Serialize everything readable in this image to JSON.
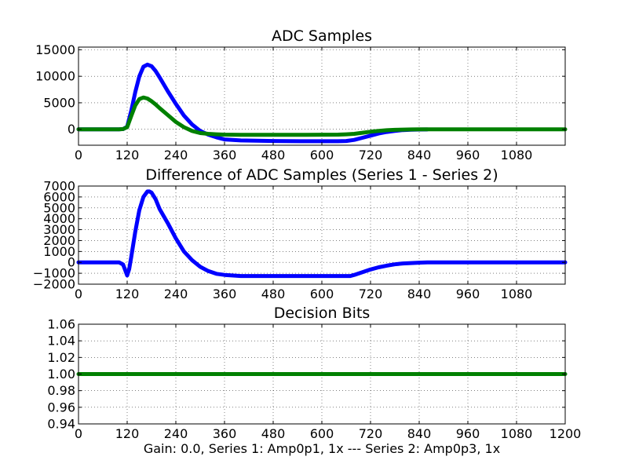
{
  "figure": {
    "xlabel": "Gain: 0.0, Series 1: Amp0p1, 1x --- Series 2: Amp0p3, 1x"
  },
  "chart_data": [
    {
      "type": "line",
      "title": "ADC Samples",
      "xlim": [
        0,
        1200
      ],
      "ylim": [
        -3000,
        15500
      ],
      "xticks": [
        0,
        120,
        240,
        360,
        480,
        600,
        720,
        840,
        960,
        1080
      ],
      "yticks": [
        0,
        5000,
        10000,
        15000
      ],
      "grid": true,
      "series": [
        {
          "name": "Series 1",
          "color": "#0000ff",
          "x": [
            0,
            100,
            110,
            120,
            130,
            140,
            150,
            160,
            170,
            180,
            190,
            200,
            220,
            240,
            260,
            280,
            300,
            320,
            340,
            360,
            400,
            480,
            560,
            640,
            660,
            680,
            700,
            720,
            740,
            760,
            780,
            800,
            820,
            840,
            860
          ],
          "y": [
            0,
            0,
            50,
            500,
            3500,
            7000,
            10000,
            11800,
            12200,
            11900,
            11000,
            9800,
            7200,
            4800,
            2600,
            900,
            -300,
            -1000,
            -1500,
            -1900,
            -2100,
            -2200,
            -2250,
            -2250,
            -2200,
            -2000,
            -1600,
            -1200,
            -800,
            -500,
            -300,
            -150,
            -80,
            -40,
            -20
          ]
        },
        {
          "name": "Series 2",
          "color": "#008000",
          "x": [
            0,
            100,
            110,
            120,
            130,
            140,
            150,
            160,
            170,
            180,
            190,
            200,
            220,
            240,
            260,
            280,
            300,
            320,
            340,
            360,
            400,
            480,
            560,
            640,
            660,
            680,
            700,
            720,
            740,
            760,
            780,
            800,
            820,
            840,
            880,
            960,
            1080,
            1200
          ],
          "y": [
            0,
            0,
            50,
            400,
            2500,
            4500,
            5700,
            6000,
            5800,
            5300,
            4700,
            4000,
            2700,
            1400,
            400,
            -300,
            -700,
            -850,
            -950,
            -1000,
            -1050,
            -1050,
            -1050,
            -1000,
            -950,
            -850,
            -650,
            -450,
            -300,
            -180,
            -100,
            -50,
            -20,
            0,
            0,
            0,
            0,
            0
          ]
        }
      ]
    },
    {
      "type": "line",
      "title": "Difference of ADC Samples (Series 1 - Series 2)",
      "xlim": [
        0,
        1200
      ],
      "ylim": [
        -2000,
        7000
      ],
      "xticks": [
        0,
        120,
        240,
        360,
        480,
        600,
        720,
        840,
        960,
        1080
      ],
      "yticks": [
        -2000,
        -1000,
        0,
        1000,
        2000,
        3000,
        4000,
        5000,
        6000,
        7000
      ],
      "grid": true,
      "series": [
        {
          "name": "Series 1 - Series 2",
          "color": "#0000ff",
          "x": [
            0,
            100,
            110,
            115,
            120,
            125,
            130,
            140,
            150,
            160,
            170,
            175,
            180,
            190,
            200,
            220,
            240,
            260,
            280,
            300,
            320,
            340,
            360,
            400,
            480,
            560,
            640,
            670,
            680,
            700,
            720,
            740,
            760,
            780,
            800,
            820,
            840,
            860,
            960,
            1080,
            1200
          ],
          "y": [
            0,
            0,
            -200,
            -700,
            -1200,
            -600,
            500,
            2800,
            4800,
            6000,
            6500,
            6500,
            6400,
            5800,
            4900,
            3600,
            2200,
            1000,
            200,
            -400,
            -800,
            -1050,
            -1150,
            -1250,
            -1250,
            -1250,
            -1250,
            -1250,
            -1150,
            -900,
            -650,
            -450,
            -300,
            -180,
            -100,
            -60,
            -30,
            0,
            0,
            0,
            0
          ]
        }
      ]
    },
    {
      "type": "line",
      "title": "Decision Bits",
      "xlim": [
        0,
        1200
      ],
      "ylim": [
        0.94,
        1.06
      ],
      "xticks": [
        0,
        120,
        240,
        360,
        480,
        600,
        720,
        840,
        960,
        1080,
        1200
      ],
      "yticks": [
        0.94,
        0.96,
        0.98,
        1.0,
        1.02,
        1.04,
        1.06
      ],
      "ytick_labels": [
        "0.94",
        "0.96",
        "0.98",
        "1.00",
        "1.02",
        "1.04",
        "1.06"
      ],
      "grid": true,
      "series": [
        {
          "name": "Decision",
          "color": "#008000",
          "x": [
            0,
            1200
          ],
          "y": [
            1.0,
            1.0
          ]
        }
      ]
    }
  ]
}
